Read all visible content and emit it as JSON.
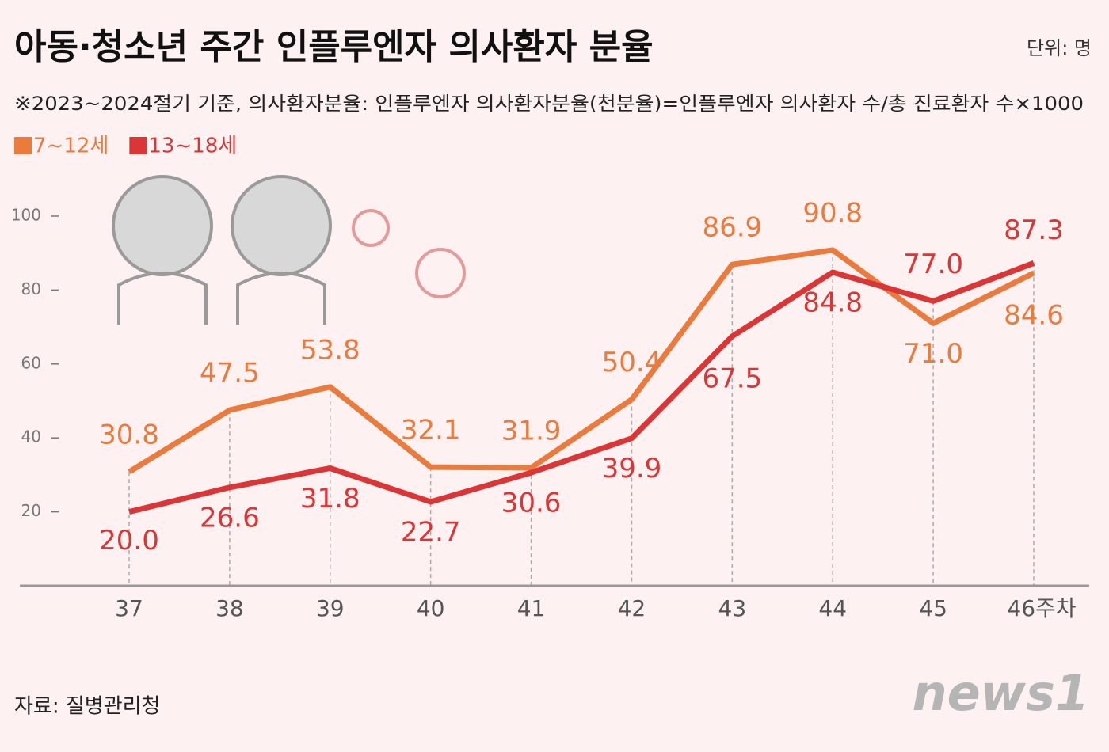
{
  "chart_data": {
    "type": "line",
    "title": "아동·청소년 주간 인플루엔자 의사환자 분율",
    "unit": "단위: 명",
    "subtitle": "※2023~2024절기 기준, 의사환자분율: 인플루엔자 의사환자분율(천분율)=인플루엔자 의사환자 수/총 진료환자 수×1000",
    "source": "자료: 질병관리청",
    "logo": "news1",
    "categories": [
      "37",
      "38",
      "39",
      "40",
      "41",
      "42",
      "43",
      "44",
      "45",
      "46주차"
    ],
    "series": [
      {
        "name": "7~12세",
        "color": "#eb7a3d",
        "values": [
          30.8,
          47.5,
          53.8,
          32.1,
          31.9,
          50.4,
          86.9,
          90.8,
          71.0,
          84.6
        ],
        "value_labels": [
          "30.8",
          "47.5",
          "53.8",
          "32.1",
          "31.9",
          "50.4",
          "86.9",
          "90.8",
          "71.0",
          "84.6"
        ]
      },
      {
        "name": "13~18세",
        "color": "#dc3535",
        "values": [
          20.0,
          26.6,
          31.8,
          22.7,
          30.6,
          39.9,
          67.5,
          84.8,
          77.0,
          87.3
        ],
        "value_labels": [
          "20.0",
          "26.6",
          "31.8",
          "22.7",
          "30.6",
          "39.9",
          "67.5",
          "84.8",
          "77.0",
          "87.3"
        ]
      }
    ],
    "ylim": [
      0,
      100
    ],
    "yticks": [
      20,
      40,
      60,
      80,
      100
    ],
    "grid": false
  }
}
